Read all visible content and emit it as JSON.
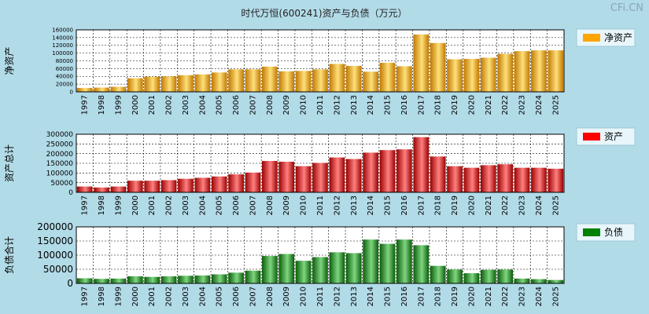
{
  "title": "时代万恒(600241)资产与负债（万元）",
  "watermark": "CFi.CN",
  "chart_data": [
    {
      "type": "bar",
      "ylabel": "净资产",
      "legend": "净资产",
      "legend_color": "#ffa500",
      "bar_light": "#ffe07a",
      "bar_dark": "#c07800",
      "ylim": [
        0,
        160000
      ],
      "yticks": [
        0,
        20000,
        40000,
        60000,
        80000,
        100000,
        120000,
        140000,
        160000
      ],
      "categories": [
        "1997",
        "1998",
        "1999",
        "2000",
        "2001",
        "2002",
        "2003",
        "2004",
        "2005",
        "2006",
        "2007",
        "2008",
        "2009",
        "2010",
        "2011",
        "2012",
        "2013",
        "2014",
        "2015",
        "2016",
        "2017",
        "2018",
        "2019",
        "2020",
        "2021",
        "2022",
        "2023",
        "2024",
        "2025"
      ],
      "values": [
        10000,
        11000,
        13000,
        35000,
        39000,
        40000,
        43000,
        45000,
        50000,
        58000,
        58000,
        65000,
        53000,
        54000,
        58000,
        72000,
        67000,
        52000,
        75000,
        66000,
        148000,
        126000,
        84000,
        85000,
        88000,
        98000,
        105000,
        107000,
        107000
      ]
    },
    {
      "type": "bar",
      "ylabel": "资产总计",
      "legend": "资产",
      "legend_color": "#ff0000",
      "bar_light": "#ff8080",
      "bar_dark": "#9a0000",
      "ylim": [
        0,
        300000
      ],
      "yticks": [
        0,
        50000,
        100000,
        150000,
        200000,
        250000,
        300000
      ],
      "categories": [
        "1997",
        "1998",
        "1999",
        "2000",
        "2001",
        "2002",
        "2003",
        "2004",
        "2005",
        "2006",
        "2007",
        "2008",
        "2009",
        "2010",
        "2011",
        "2012",
        "2013",
        "2014",
        "2015",
        "2016",
        "2017",
        "2018",
        "2019",
        "2020",
        "2021",
        "2022",
        "2023",
        "2024",
        "2025"
      ],
      "values": [
        30000,
        25000,
        30000,
        60000,
        60000,
        63000,
        70000,
        75000,
        82000,
        93000,
        102000,
        162000,
        158000,
        135000,
        152000,
        180000,
        172000,
        205000,
        218000,
        222000,
        285000,
        185000,
        135000,
        127000,
        140000,
        145000,
        127000,
        127000,
        122000
      ]
    },
    {
      "type": "bar",
      "ylabel": "负债合计",
      "legend": "负债",
      "legend_color": "#008000",
      "bar_light": "#7fd67f",
      "bar_dark": "#0a5c0a",
      "ylim": [
        0,
        200000
      ],
      "yticks": [
        0,
        50000,
        100000,
        150000,
        200000
      ],
      "categories": [
        "1997",
        "1998",
        "1999",
        "2000",
        "2001",
        "2002",
        "2003",
        "2004",
        "2005",
        "2006",
        "2007",
        "2008",
        "2009",
        "2010",
        "2011",
        "2012",
        "2013",
        "2014",
        "2015",
        "2016",
        "2017",
        "2018",
        "2019",
        "2020",
        "2021",
        "2022",
        "2023",
        "2024",
        "2025"
      ],
      "values": [
        18000,
        16000,
        17000,
        25000,
        23000,
        25000,
        27000,
        28000,
        32000,
        38000,
        45000,
        97000,
        104000,
        80000,
        93000,
        110000,
        107000,
        155000,
        140000,
        155000,
        135000,
        62000,
        49000,
        36000,
        48000,
        49000,
        17000,
        15000,
        12000
      ]
    }
  ]
}
